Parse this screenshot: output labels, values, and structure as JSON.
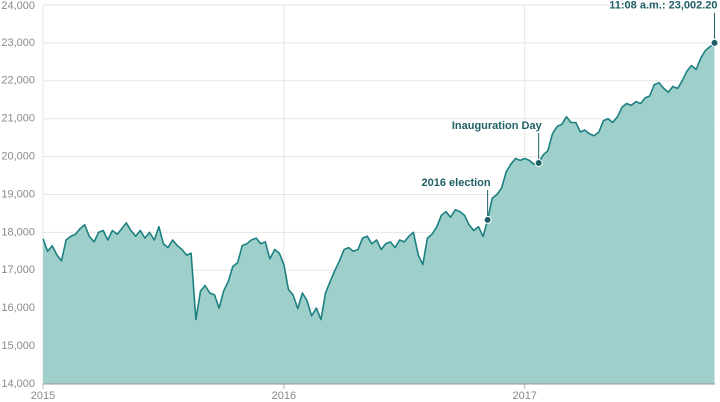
{
  "chart_data": {
    "type": "area",
    "series": [
      {
        "color": "#1d8080",
        "fill": "#9fcfcb",
        "x": [
          2015,
          2015.019,
          2015.038,
          2015.058,
          2015.077,
          2015.096,
          2015.115,
          2015.135,
          2015.154,
          2015.173,
          2015.192,
          2015.212,
          2015.231,
          2015.25,
          2015.269,
          2015.288,
          2015.308,
          2015.327,
          2015.346,
          2015.365,
          2015.385,
          2015.404,
          2015.423,
          2015.442,
          2015.462,
          2015.481,
          2015.5,
          2015.519,
          2015.538,
          2015.558,
          2015.577,
          2015.596,
          2015.615,
          2015.635,
          2015.654,
          2015.673,
          2015.692,
          2015.712,
          2015.731,
          2015.75,
          2015.769,
          2015.788,
          2015.808,
          2015.827,
          2015.846,
          2015.865,
          2015.885,
          2015.904,
          2015.923,
          2015.942,
          2015.962,
          2015.981,
          2016,
          2016.019,
          2016.038,
          2016.058,
          2016.077,
          2016.096,
          2016.115,
          2016.135,
          2016.154,
          2016.173,
          2016.192,
          2016.212,
          2016.231,
          2016.25,
          2016.269,
          2016.288,
          2016.308,
          2016.327,
          2016.346,
          2016.365,
          2016.385,
          2016.404,
          2016.423,
          2016.442,
          2016.462,
          2016.481,
          2016.5,
          2016.519,
          2016.538,
          2016.558,
          2016.577,
          2016.596,
          2016.615,
          2016.635,
          2016.654,
          2016.673,
          2016.692,
          2016.712,
          2016.731,
          2016.75,
          2016.769,
          2016.788,
          2016.808,
          2016.827,
          2016.846,
          2016.865,
          2016.885,
          2016.904,
          2016.923,
          2016.942,
          2016.962,
          2016.981,
          2017,
          2017.019,
          2017.038,
          2017.058,
          2017.077,
          2017.096,
          2017.115,
          2017.135,
          2017.154,
          2017.173,
          2017.192,
          2017.212,
          2017.231,
          2017.25,
          2017.269,
          2017.288,
          2017.308,
          2017.327,
          2017.346,
          2017.365,
          2017.385,
          2017.404,
          2017.423,
          2017.442,
          2017.462,
          2017.481,
          2017.5,
          2017.519,
          2017.538,
          2017.558,
          2017.577,
          2017.596,
          2017.615,
          2017.635,
          2017.654,
          2017.673,
          2017.692,
          2017.712,
          2017.731,
          2017.75,
          2017.769,
          2017.788
        ],
        "values": [
          17830,
          17500,
          17650,
          17400,
          17250,
          17800,
          17900,
          17950,
          18100,
          18200,
          17900,
          17750,
          18000,
          18050,
          17800,
          18050,
          17950,
          18100,
          18250,
          18050,
          17900,
          18050,
          17850,
          18000,
          17800,
          18150,
          17700,
          17600,
          17800,
          17650,
          17550,
          17400,
          17450,
          15700,
          16450,
          16600,
          16400,
          16350,
          16000,
          16450,
          16700,
          17100,
          17200,
          17650,
          17700,
          17800,
          17850,
          17700,
          17750,
          17300,
          17550,
          17450,
          17150,
          16500,
          16350,
          15990,
          16400,
          16200,
          15800,
          16000,
          15700,
          16400,
          16700,
          17000,
          17250,
          17550,
          17600,
          17500,
          17550,
          17850,
          17900,
          17700,
          17800,
          17550,
          17700,
          17750,
          17600,
          17800,
          17750,
          17900,
          18000,
          17400,
          17150,
          17850,
          17950,
          18150,
          18450,
          18550,
          18400,
          18600,
          18550,
          18450,
          18200,
          18050,
          18150,
          17890,
          18330,
          18900,
          19000,
          19170,
          19600,
          19800,
          19950,
          19900,
          19950,
          19900,
          19800,
          19830,
          20050,
          20150,
          20600,
          20800,
          20850,
          21050,
          20900,
          20900,
          20650,
          20700,
          20600,
          20550,
          20650,
          20950,
          21000,
          20900,
          21050,
          21300,
          21400,
          21350,
          21450,
          21400,
          21550,
          21600,
          21900,
          21950,
          21800,
          21700,
          21850,
          21800,
          22000,
          22250,
          22400,
          22300,
          22600,
          22800,
          22900,
          23002.2
        ]
      }
    ],
    "xlim": [
      2015,
      2017.79
    ],
    "xticks": [
      2015,
      2016,
      2017
    ],
    "ylim": [
      14000,
      24000
    ],
    "yticks": [
      {
        "value": 14000,
        "label": "14,000"
      },
      {
        "value": 15000,
        "label": "15,000"
      },
      {
        "value": 16000,
        "label": "16,000"
      },
      {
        "value": 17000,
        "label": "17,000"
      },
      {
        "value": 18000,
        "label": "18,000"
      },
      {
        "value": 19000,
        "label": "19,000"
      },
      {
        "value": 20000,
        "label": "20,000"
      },
      {
        "value": 21000,
        "label": "21,000"
      },
      {
        "value": 22000,
        "label": "22,000"
      },
      {
        "value": 23000,
        "label": "23,000"
      },
      {
        "value": 24000,
        "label": "24,000"
      }
    ],
    "grid": true,
    "annotations": [
      {
        "text": "2016 election",
        "x": 2016.846,
        "y": 18330
      },
      {
        "text": "Inauguration Day",
        "x": 2017.058,
        "y": 19830
      },
      {
        "text": "11:08 a.m.: 23,002.20",
        "x": 2017.788,
        "y": 23002.2
      }
    ]
  }
}
